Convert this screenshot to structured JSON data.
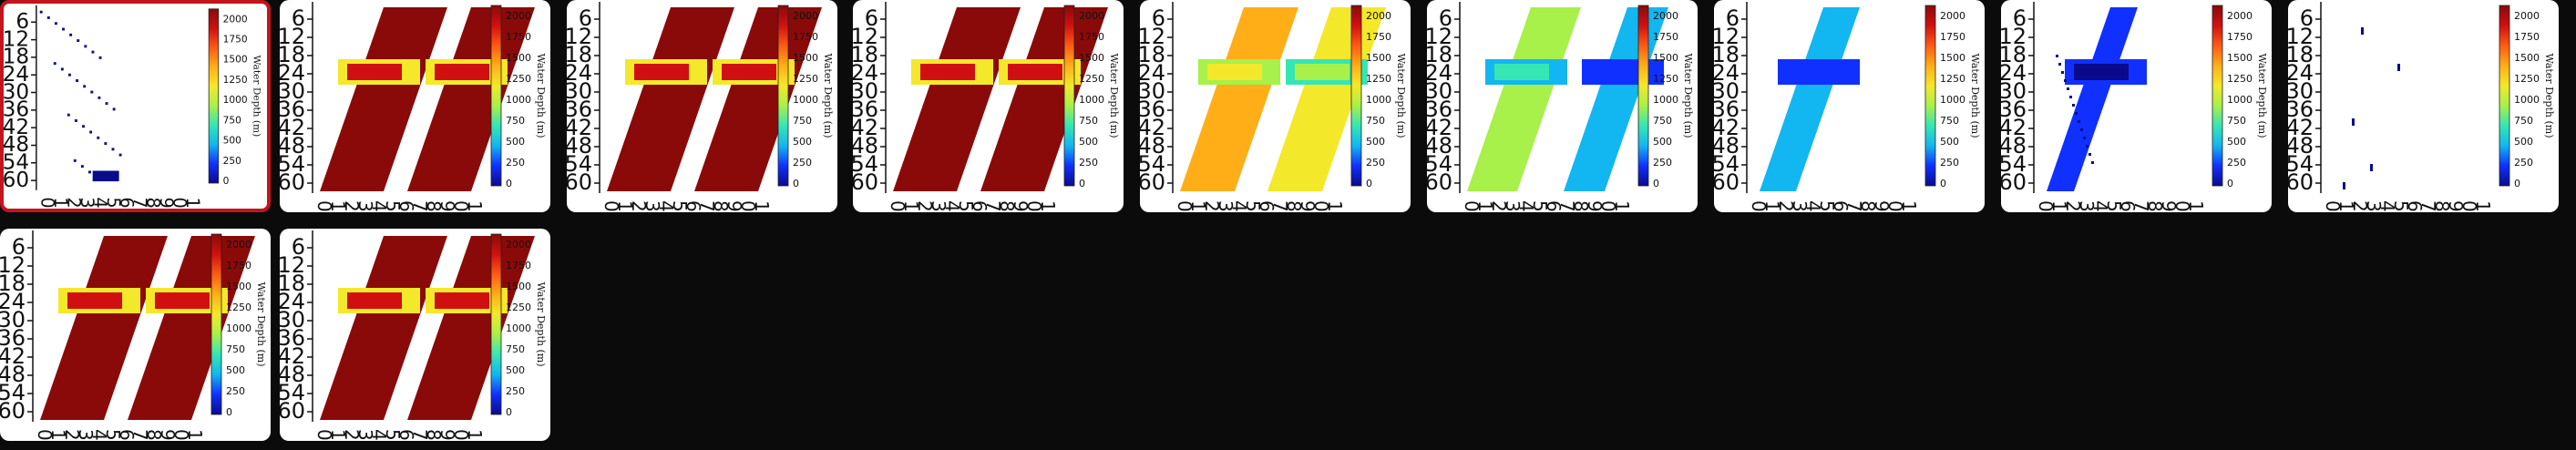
{
  "gallery": {
    "colorbar": {
      "title": "Water Depth (m)",
      "ticks": [
        "2000",
        "1750",
        "1500",
        "1250",
        "1000",
        "750",
        "500",
        "250",
        "0"
      ],
      "colors": [
        "#0a0a8c",
        "#1030ff",
        "#12b6f0",
        "#35e6b4",
        "#a8f04a",
        "#f4e82a",
        "#ffae18",
        "#ff5a14",
        "#d01010",
        "#8a0a0a"
      ]
    },
    "y_ticks": [
      "6",
      "12",
      "18",
      "24",
      "30",
      "36",
      "42",
      "48",
      "54",
      "60"
    ],
    "x_ticks": [
      "0",
      "1",
      "2",
      "3",
      "4",
      "5",
      "6",
      "7",
      "8",
      "9",
      "0",
      "1"
    ],
    "thumbnails": [
      {
        "id": "t1",
        "state": "selected",
        "pattern": "sparse"
      },
      {
        "id": "t2",
        "state": "normal",
        "pattern": "full"
      },
      {
        "id": "t3",
        "state": "normal",
        "pattern": "full"
      },
      {
        "id": "t4",
        "state": "normal",
        "pattern": "full-light"
      },
      {
        "id": "t5",
        "state": "normal",
        "pattern": "medium"
      },
      {
        "id": "t6",
        "state": "normal",
        "pattern": "blue"
      },
      {
        "id": "t7",
        "state": "normal",
        "pattern": "blue-sparse"
      },
      {
        "id": "t8",
        "state": "normal",
        "pattern": "grid-sparse"
      },
      {
        "id": "t9",
        "state": "normal",
        "pattern": "dots"
      },
      {
        "id": "t10",
        "state": "normal",
        "pattern": "full"
      },
      {
        "id": "t11",
        "state": "normal",
        "pattern": "full"
      }
    ]
  }
}
